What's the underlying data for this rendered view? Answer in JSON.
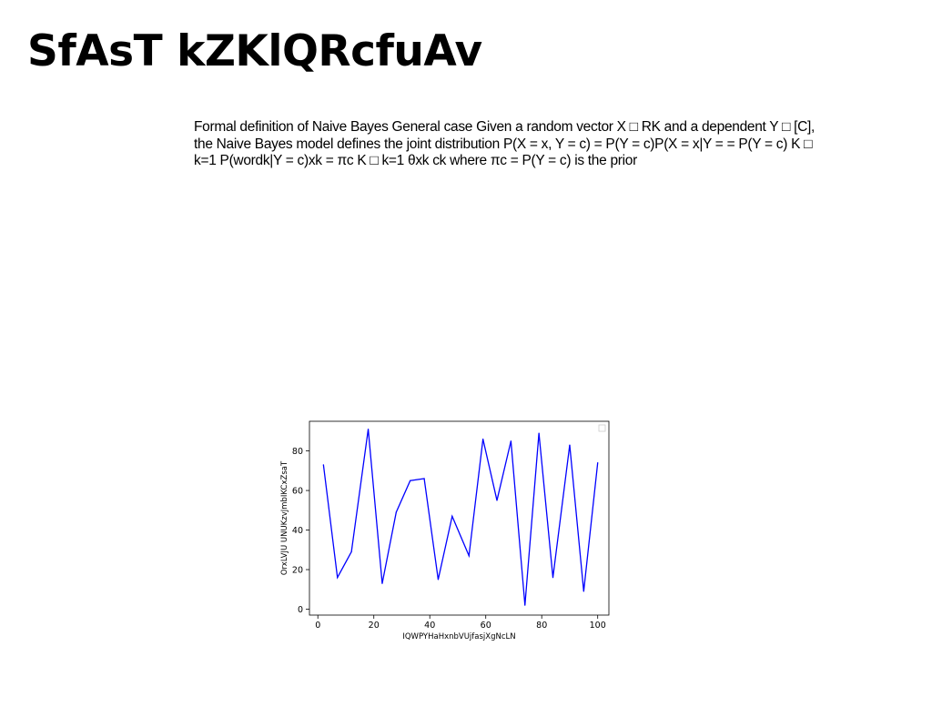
{
  "slide": {
    "title": "SfAsT kZKlQRcfuAv",
    "body": "Formal definition of Naive Bayes General case Given a random vector X □ RK and a dependent Y □ [C], the Naive Bayes model defines the joint distribution P(X = x, Y = c) = P(Y = c)P(X = x|Y = = P(Y = c) K □ k=1 P(wordk|Y = c)xk = πc K □ k=1 θxk ck where πc = P(Y = c) is the prior"
  },
  "chart_data": {
    "type": "line",
    "title": "",
    "xlabel": "IQWPYHaHxnbVUjfasjXgNcLN",
    "ylabel": "OrxLVJU UNUKzvJmbIKCxZsaT",
    "xlim": [
      -3,
      104
    ],
    "ylim": [
      -3,
      95
    ],
    "xticks": [
      0,
      20,
      40,
      60,
      80,
      100
    ],
    "yticks": [
      0,
      20,
      40,
      60,
      80
    ],
    "grid": false,
    "legend": "top-right (empty)",
    "series": [
      {
        "color": "#0000ff",
        "x": [
          2,
          7,
          12,
          18,
          23,
          28,
          33,
          38,
          43,
          48,
          54,
          59,
          64,
          69,
          74,
          79,
          84,
          90,
          95,
          100
        ],
        "y": [
          73,
          16,
          29,
          91,
          13,
          49,
          65,
          66,
          15,
          47,
          27,
          86,
          55,
          85,
          2,
          89,
          16,
          83,
          9,
          74
        ]
      }
    ]
  }
}
